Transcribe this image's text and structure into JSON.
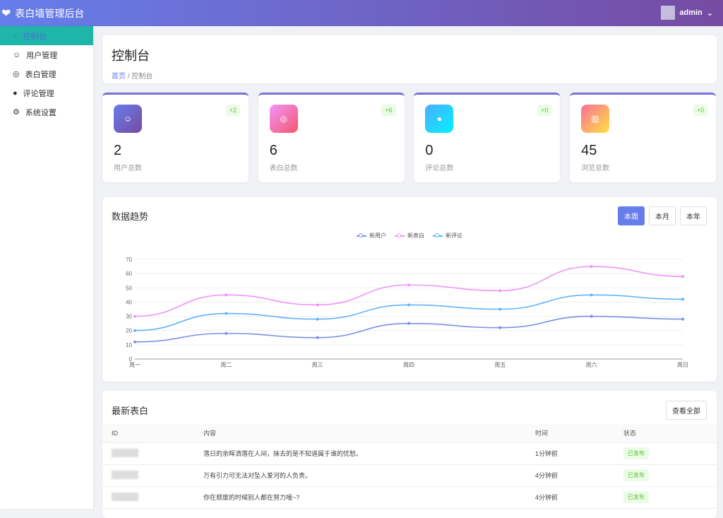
{
  "app": {
    "title": "表白墙管理后台",
    "user": "admin"
  },
  "sidebar": {
    "items": [
      {
        "label": "控制台"
      },
      {
        "label": "用户管理"
      },
      {
        "label": "表白管理"
      },
      {
        "label": "评论管理"
      },
      {
        "label": "系统设置"
      }
    ]
  },
  "page": {
    "title": "控制台",
    "breadcrumb_home": "首页",
    "breadcrumb_sep": "/",
    "breadcrumb_current": "控制台"
  },
  "stats": [
    {
      "value": "2",
      "label": "用户总数",
      "delta": "+2",
      "icon": "user-icon",
      "gradient": [
        "#667eea",
        "#764ba2"
      ]
    },
    {
      "value": "6",
      "label": "表白总数",
      "delta": "+6",
      "icon": "heart-chat-icon",
      "gradient": [
        "#f093fb",
        "#f5576c"
      ]
    },
    {
      "value": "0",
      "label": "评论总数",
      "delta": "+0",
      "icon": "comment-icon",
      "gradient": [
        "#4facfe",
        "#00f2fe"
      ]
    },
    {
      "value": "45",
      "label": "浏览总数",
      "delta": "+0",
      "icon": "book-icon",
      "gradient": [
        "#fa709a",
        "#fee140"
      ]
    }
  ],
  "trend": {
    "title": "数据趋势",
    "ranges": [
      "本周",
      "本月",
      "本年"
    ],
    "active_range": "本周"
  },
  "chart_data": {
    "type": "line",
    "categories": [
      "周一",
      "周二",
      "周三",
      "周四",
      "周五",
      "周六",
      "周日"
    ],
    "ylim": [
      0,
      70
    ],
    "yticks": [
      0,
      10,
      20,
      30,
      40,
      50,
      60,
      70
    ],
    "grid": true,
    "legend": "top-center",
    "series": [
      {
        "name": "新用户",
        "color": "#7b8fe8",
        "values": [
          12,
          18,
          15,
          25,
          22,
          30,
          28
        ]
      },
      {
        "name": "新表白",
        "color": "#f093fb",
        "values": [
          30,
          45,
          38,
          52,
          48,
          65,
          58
        ]
      },
      {
        "name": "新评论",
        "color": "#5fb3fb",
        "values": [
          20,
          32,
          28,
          38,
          35,
          45,
          42
        ]
      }
    ]
  },
  "latest": {
    "title": "最新表白",
    "view_all": "查看全部",
    "columns": [
      "ID",
      "内容",
      "时间",
      "状态"
    ],
    "rows": [
      {
        "content": "落日的余晖洒落在人间，抹去的是不知道属于谁的忧愁。",
        "time": "1分钟前",
        "status": "已发布"
      },
      {
        "content": "万有引力可无法对坠入爱河的人负责。",
        "time": "4分钟前",
        "status": "已发布"
      },
      {
        "content": "你在颓废的时候别人都在努力哦~?",
        "time": "4分钟前",
        "status": "已发布"
      }
    ]
  }
}
